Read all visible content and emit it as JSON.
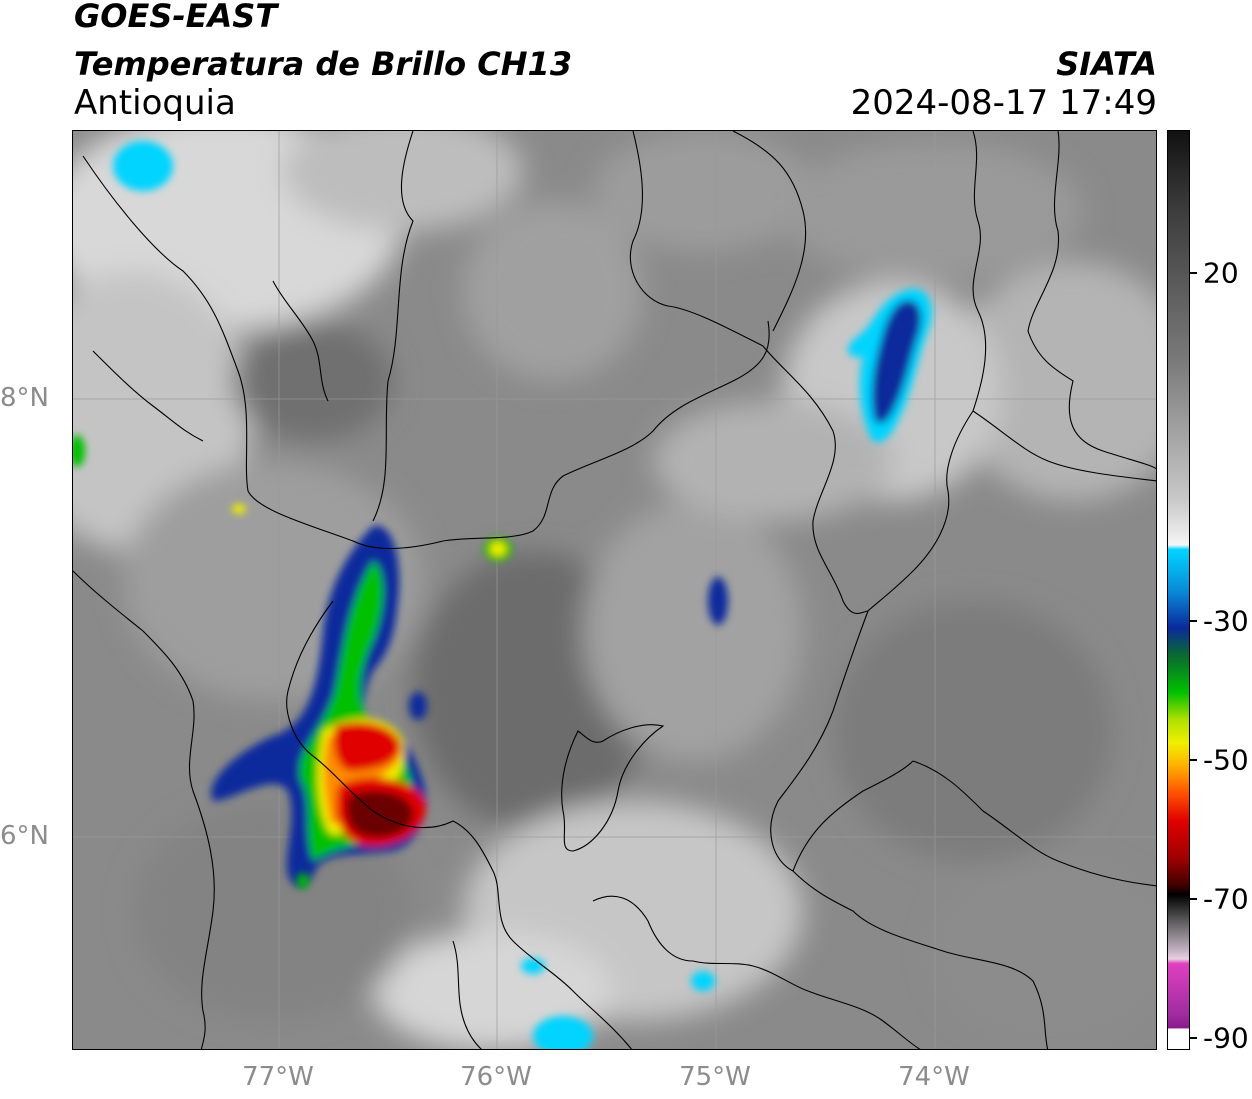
{
  "header": {
    "satellite": "GOES-EAST",
    "product": "Temperatura de Brillo CH13",
    "region": "Antioquia",
    "brand": "SIATA",
    "datetime": "2024-08-17 17:49"
  },
  "map": {
    "x_axis_ticks": [
      "77°W",
      "76°W",
      "75°W",
      "74°W"
    ],
    "y_axis_ticks": [
      "8°N",
      "6°N"
    ]
  },
  "colorbar": {
    "labels": [
      "20",
      "-30",
      "-50",
      "-70",
      "-90"
    ],
    "palette": {
      "warm_gray": "#5a5a5a",
      "light": "#f2f2f2",
      "cyan": "#00d4ff",
      "blue": "#0a2a9c",
      "green": "#00c000",
      "yellow": "#f0f000",
      "orange": "#ff8c00",
      "red": "#e00000",
      "dark_red": "#6a0000",
      "black": "#000000",
      "pink": "#e040c0",
      "purple": "#8a1a8a"
    }
  }
}
